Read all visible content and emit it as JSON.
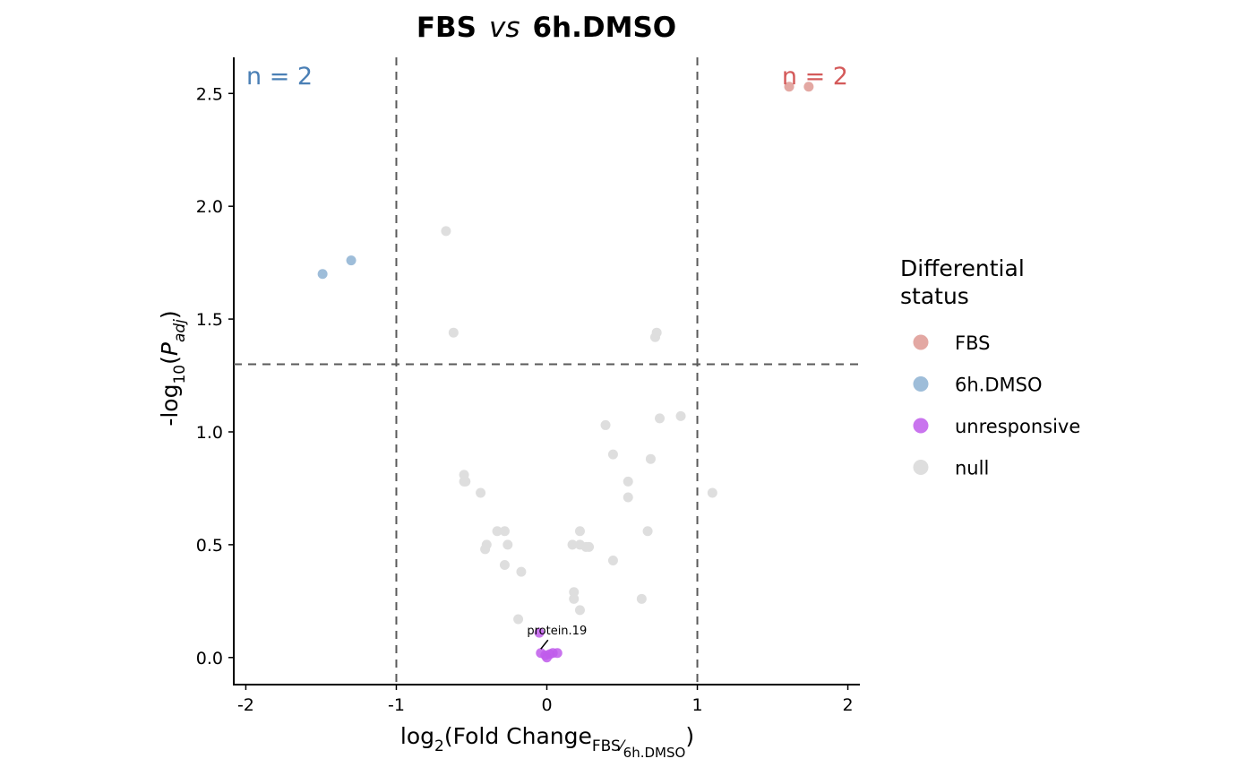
{
  "chart_data": {
    "type": "scatter",
    "title": {
      "left": "FBS",
      "mid": "vs",
      "right": "6h.DMSO"
    },
    "xlabel": {
      "prefix": "log",
      "prefix_sub": "2",
      "main": "(Fold Change",
      "sub_num": "FBS",
      "sub_den": "6h.DMSO",
      "close": ")"
    },
    "ylabel": {
      "prefix": "-log",
      "prefix_sub": "10",
      "open": "(",
      "p": "P",
      "p_sub": "adj",
      "close": ")"
    },
    "xlim": [
      -2.08,
      2.08
    ],
    "ylim": [
      -0.12,
      2.66
    ],
    "x_ticks": [
      -2,
      -1,
      0,
      1,
      2
    ],
    "x_tick_labels": [
      "-2",
      "-1",
      "0",
      "1",
      "2"
    ],
    "y_ticks": [
      0.0,
      0.5,
      1.0,
      1.5,
      2.0,
      2.5
    ],
    "y_tick_labels": [
      "0.0",
      "0.5",
      "1.0",
      "1.5",
      "2.0",
      "2.5"
    ],
    "thresholds": {
      "log2fc": [
        -1,
        1
      ],
      "neg_log10_padj": 1.3
    },
    "counts": {
      "left": "n = 2",
      "right": "n = 2"
    },
    "colors": {
      "FBS": "#E3A8A3",
      "6h.DMSO": "#9EBDD9",
      "unresponsive": "#BF5CEB",
      "null": "#DEDEDE",
      "count_left": "#4A7FB5",
      "count_right": "#D45A5A"
    },
    "legend": {
      "title_lines": [
        "Differential",
        "status"
      ],
      "entries": [
        "FBS",
        "6h.DMSO",
        "unresponsive",
        "null"
      ]
    },
    "labels": [
      {
        "text": "protein.19",
        "x": -0.04,
        "y": 0.03
      }
    ],
    "series": [
      {
        "name": "FBS",
        "points": [
          [
            1.61,
            2.53
          ],
          [
            1.74,
            2.53
          ]
        ]
      },
      {
        "name": "6h.DMSO",
        "points": [
          [
            -1.49,
            1.7
          ],
          [
            -1.3,
            1.76
          ]
        ]
      },
      {
        "name": "unresponsive",
        "points": [
          [
            -0.05,
            0.11
          ],
          [
            -0.04,
            0.02
          ],
          [
            -0.01,
            0.01
          ],
          [
            0.0,
            0.0
          ],
          [
            0.02,
            0.015
          ],
          [
            0.04,
            0.02
          ],
          [
            0.07,
            0.02
          ]
        ]
      },
      {
        "name": "null",
        "points": [
          [
            -0.67,
            1.89
          ],
          [
            -0.62,
            1.44
          ],
          [
            -0.55,
            0.81
          ],
          [
            -0.55,
            0.78
          ],
          [
            -0.54,
            0.78
          ],
          [
            -0.44,
            0.73
          ],
          [
            -0.41,
            0.48
          ],
          [
            -0.4,
            0.5
          ],
          [
            -0.33,
            0.56
          ],
          [
            -0.28,
            0.56
          ],
          [
            -0.26,
            0.5
          ],
          [
            -0.28,
            0.41
          ],
          [
            -0.17,
            0.38
          ],
          [
            -0.19,
            0.17
          ],
          [
            0.17,
            0.5
          ],
          [
            0.18,
            0.26
          ],
          [
            0.18,
            0.29
          ],
          [
            0.22,
            0.56
          ],
          [
            0.22,
            0.5
          ],
          [
            0.22,
            0.21
          ],
          [
            0.26,
            0.49
          ],
          [
            0.28,
            0.49
          ],
          [
            0.39,
            1.03
          ],
          [
            0.44,
            0.9
          ],
          [
            0.44,
            0.43
          ],
          [
            0.54,
            0.78
          ],
          [
            0.54,
            0.71
          ],
          [
            0.63,
            0.26
          ],
          [
            0.67,
            0.56
          ],
          [
            0.69,
            0.88
          ],
          [
            0.72,
            1.42
          ],
          [
            0.73,
            1.44
          ],
          [
            0.75,
            1.06
          ],
          [
            0.89,
            1.07
          ],
          [
            1.1,
            0.73
          ]
        ]
      }
    ]
  }
}
